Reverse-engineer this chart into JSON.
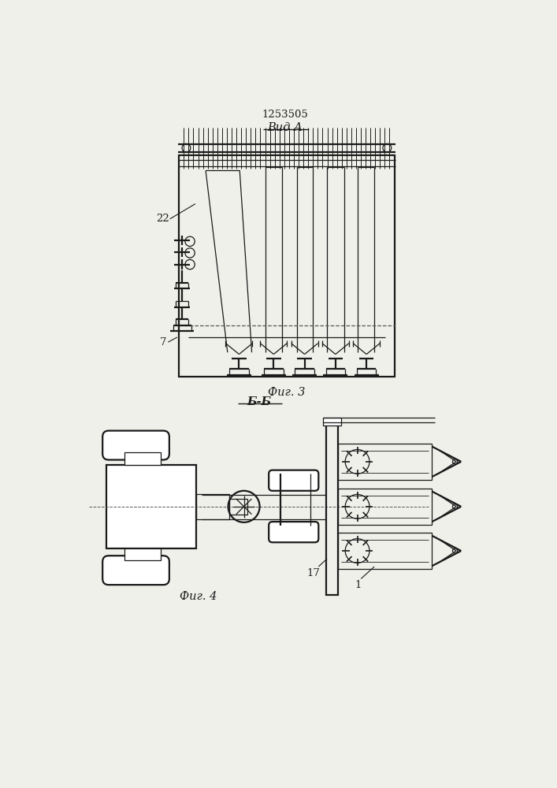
{
  "patent_number": "1253505",
  "title_view_a": "Вид А",
  "title_fig3": "Фиг. 3",
  "title_section_bb": "Б-Б",
  "title_fig4": "Фиг. 4",
  "label_22": "22",
  "label_7": "7",
  "label_17": "17",
  "label_1": "1",
  "bg_color": "#f0f0eb",
  "line_color": "#1a1a1a",
  "lw": 0.9,
  "lw2": 1.6,
  "lw3": 2.2
}
